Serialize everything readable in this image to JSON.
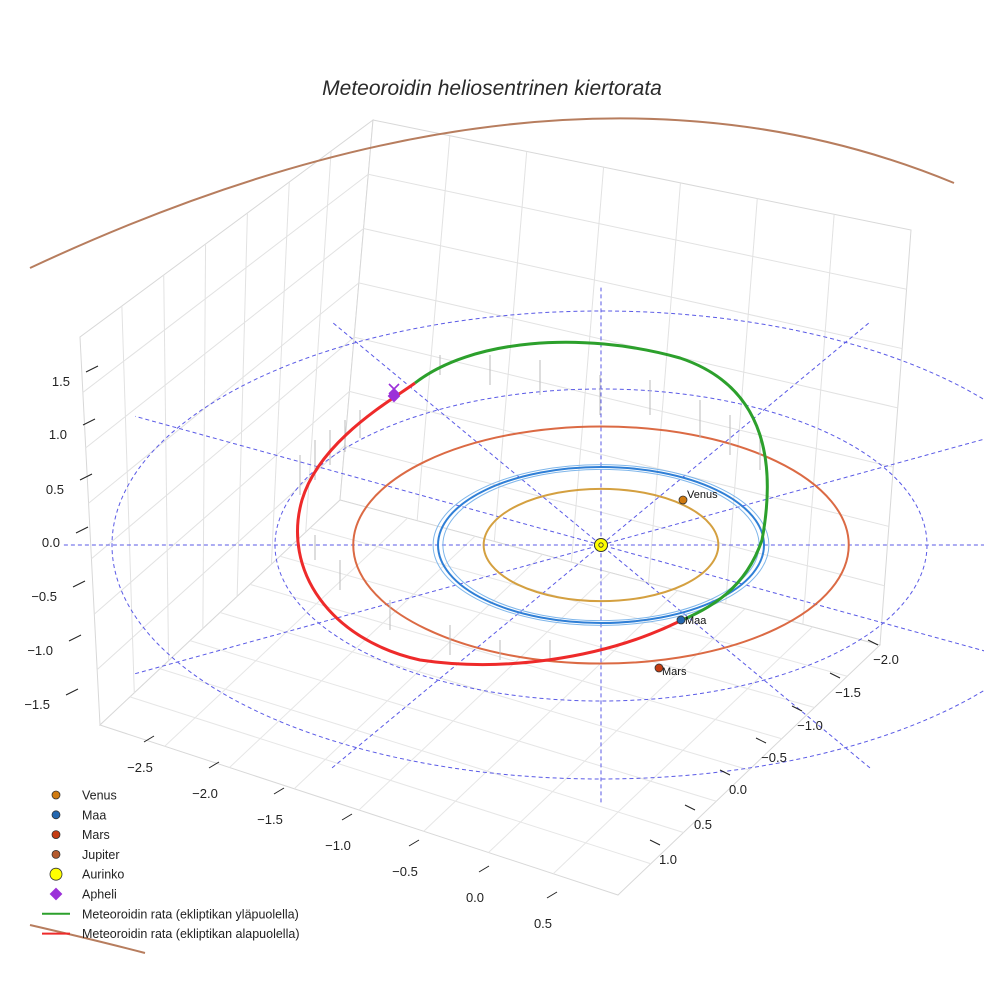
{
  "chart_data": {
    "type": "scatter",
    "projection": "3d",
    "title": "Meteoroidin heliosentrinen kiertorata",
    "axes": {
      "x": {
        "ticks": [
          "−2.5",
          "−2.0",
          "−1.5",
          "−1.0",
          "−0.5",
          "0.0",
          "0.5"
        ],
        "tick_values": [
          -2.5,
          -2.0,
          -1.5,
          -1.0,
          -0.5,
          0.0,
          0.5
        ]
      },
      "y": {
        "ticks": [
          "−2.0",
          "−1.5",
          "−1.0",
          "−0.5",
          "0.0",
          "0.5",
          "1.0"
        ],
        "tick_values": [
          -2.0,
          -1.5,
          -1.0,
          -0.5,
          0.0,
          0.5,
          1.0
        ]
      },
      "z": {
        "ticks": [
          "1.5",
          "1.0",
          "0.5",
          "0.0",
          "−0.5",
          "−1.0",
          "−1.5"
        ],
        "tick_values": [
          1.5,
          1.0,
          0.5,
          0.0,
          -0.5,
          -1.0,
          -1.5
        ]
      }
    },
    "reference_circles_au": [
      1.0,
      2.0,
      3.0
    ],
    "planets": [
      {
        "name": "Venus",
        "orbit_radius_au": 0.72,
        "color": "#d4a040",
        "marker_color": "#d07a10",
        "label": "Venus"
      },
      {
        "name": "Maa",
        "orbit_radius_au": 1.0,
        "color": "#2f7fd6",
        "marker_color": "#2367b0",
        "label": "Maa"
      },
      {
        "name": "Mars",
        "orbit_radius_au": 1.52,
        "color": "#db6a44",
        "marker_color": "#c43c12",
        "label": "Mars"
      },
      {
        "name": "Jupiter",
        "orbit_radius_au": 5.2,
        "color": "#b77d5e",
        "marker_color": "#b35a2e"
      }
    ],
    "sun": {
      "name": "Aurinko",
      "color": "#ffff00"
    },
    "meteoroid_orbit": {
      "above_ecliptic": {
        "name": "Meteoroidin rata (ekliptikan yläpuolella)",
        "color": "#2ca02c"
      },
      "below_ecliptic": {
        "name": "Meteoroidin rata (ekliptikan alapuolella)",
        "color": "#ee2a2a"
      }
    },
    "aphelion": {
      "name": "Apheli",
      "color": "#9b30d9"
    },
    "legend": [
      {
        "label": "Venus",
        "kind": "dot",
        "color": "#d07a10"
      },
      {
        "label": "Maa",
        "kind": "dot",
        "color": "#2367b0"
      },
      {
        "label": "Mars",
        "kind": "dot",
        "color": "#c43c12"
      },
      {
        "label": "Jupiter",
        "kind": "dot",
        "color": "#b35a2e"
      },
      {
        "label": "Aurinko",
        "kind": "sun",
        "color": "#ffff00"
      },
      {
        "label": "Apheli",
        "kind": "diamond",
        "color": "#9b30d9"
      },
      {
        "label": "Meteoroidin rata (ekliptikan yläpuolella)",
        "kind": "line",
        "color": "#2ca02c"
      },
      {
        "label": "Meteoroidin rata (ekliptikan alapuolella)",
        "kind": "line",
        "color": "#ee2a2a"
      }
    ],
    "legend_position": "bottom-left"
  }
}
